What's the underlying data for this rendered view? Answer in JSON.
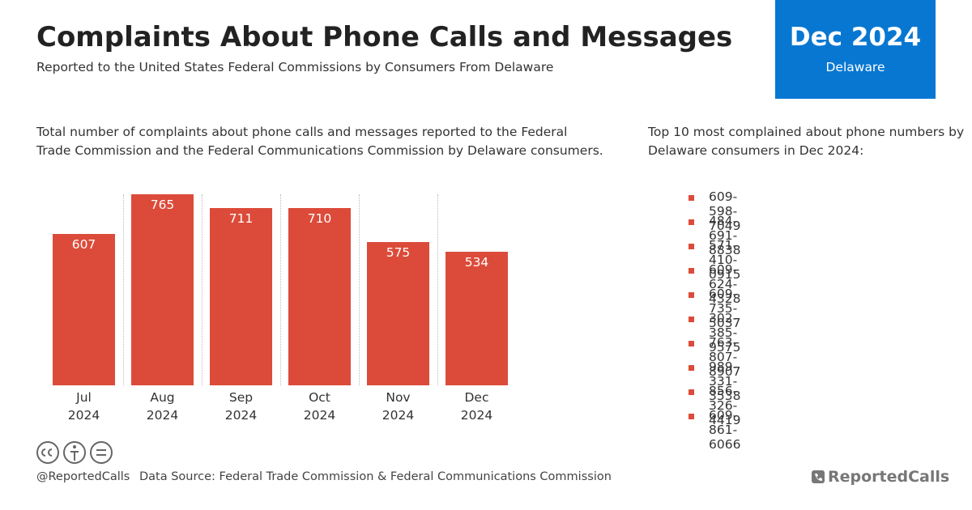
{
  "header": {
    "title": "Complaints About Phone Calls and Messages",
    "subtitle": "Reported to the United States Federal Commissions by Consumers From Delaware",
    "badge_date": "Dec 2024",
    "badge_state": "Delaware"
  },
  "chart_data": {
    "type": "bar",
    "description": "Total number of complaints about phone calls and messages reported to the Federal Trade Commission and the Federal Communications Commission by Delaware consumers.",
    "categories": [
      "Jul 2024",
      "Aug 2024",
      "Sep 2024",
      "Oct 2024",
      "Nov 2024",
      "Dec 2024"
    ],
    "values": [
      607,
      765,
      711,
      710,
      575,
      534
    ],
    "color": "#dc4b3a"
  },
  "top_numbers": {
    "heading": "Top 10 most complained about phone numbers by Delaware consumers in Dec 2024:",
    "items": [
      "609-598-7049",
      "484-691-8838",
      "571-410-0915",
      "609-624-4328",
      "609-735-5037",
      "302-385-9575",
      "763-807-8907",
      "989-331-3538",
      "856-326-4419",
      "609-861-6066"
    ]
  },
  "footer": {
    "handle": "@ReportedCalls",
    "source": "Data Source: Federal Trade Commission & Federal Communications Commission",
    "logo": "ReportedCalls"
  }
}
